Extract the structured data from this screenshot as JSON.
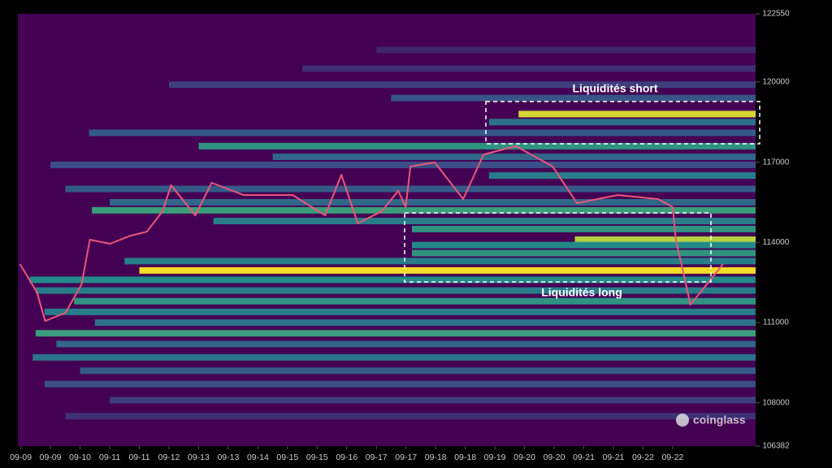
{
  "chart_data": {
    "type": "heatmap",
    "background": "#000000",
    "heat_colors": [
      "#440154",
      "#3b528b",
      "#21918c",
      "#5ec962",
      "#fde725"
    ],
    "xlim": [
      -0.1,
      24.8
    ],
    "xticks": [
      {
        "value": 0,
        "label": "09-09"
      },
      {
        "value": 1,
        "label": "09-09"
      },
      {
        "value": 2,
        "label": "09-10"
      },
      {
        "value": 3,
        "label": "09-11"
      },
      {
        "value": 4,
        "label": "09-11"
      },
      {
        "value": 5,
        "label": "09-12"
      },
      {
        "value": 6,
        "label": "09-13"
      },
      {
        "value": 7,
        "label": "09-13"
      },
      {
        "value": 8,
        "label": "09-14"
      },
      {
        "value": 9,
        "label": "09-15"
      },
      {
        "value": 10,
        "label": "09-15"
      },
      {
        "value": 11,
        "label": "09-16"
      },
      {
        "value": 12,
        "label": "09-17"
      },
      {
        "value": 13,
        "label": "09-17"
      },
      {
        "value": 14,
        "label": "09-18"
      },
      {
        "value": 15,
        "label": "09-18"
      },
      {
        "value": 16,
        "label": "09-19"
      },
      {
        "value": 17,
        "label": "09-20"
      },
      {
        "value": 18,
        "label": "09-20"
      },
      {
        "value": 19,
        "label": "09-21"
      },
      {
        "value": 20,
        "label": "09-21"
      },
      {
        "value": 21,
        "label": "09-22"
      },
      {
        "value": 22,
        "label": "09-22"
      }
    ],
    "ylim": [
      106382,
      122550
    ],
    "yticks": [
      122550,
      120000,
      117000,
      114000,
      111000,
      108000,
      106382
    ],
    "bands": [
      {
        "price": 121200,
        "intensity": 0.12,
        "start": 12.0
      },
      {
        "price": 120500,
        "intensity": 0.15,
        "start": 9.5
      },
      {
        "price": 119900,
        "intensity": 0.2,
        "start": 5.0
      },
      {
        "price": 119400,
        "intensity": 0.28,
        "start": 12.5
      },
      {
        "price": 118800,
        "intensity": 0.95,
        "start": 16.8
      },
      {
        "price": 118500,
        "intensity": 0.4,
        "start": 15.8
      },
      {
        "price": 118100,
        "intensity": 0.3,
        "start": 2.3
      },
      {
        "price": 117600,
        "intensity": 0.55,
        "start": 6.0
      },
      {
        "price": 117200,
        "intensity": 0.35,
        "start": 8.5
      },
      {
        "price": 116900,
        "intensity": 0.25,
        "start": 1.0
      },
      {
        "price": 116500,
        "intensity": 0.45,
        "start": 15.8
      },
      {
        "price": 116000,
        "intensity": 0.3,
        "start": 1.5
      },
      {
        "price": 115500,
        "intensity": 0.35,
        "start": 3.0
      },
      {
        "price": 115200,
        "intensity": 0.6,
        "start": 2.4
      },
      {
        "price": 114800,
        "intensity": 0.45,
        "start": 6.5
      },
      {
        "price": 114500,
        "intensity": 0.55,
        "start": 13.2
      },
      {
        "price": 114100,
        "intensity": 0.9,
        "start": 18.7
      },
      {
        "price": 113900,
        "intensity": 0.5,
        "start": 13.2
      },
      {
        "price": 113600,
        "intensity": 0.55,
        "start": 13.2
      },
      {
        "price": 113300,
        "intensity": 0.45,
        "start": 3.5
      },
      {
        "price": 112950,
        "intensity": 1.0,
        "start": 4.0
      },
      {
        "price": 112600,
        "intensity": 0.5,
        "start": 0.3
      },
      {
        "price": 112200,
        "intensity": 0.45,
        "start": 0.5
      },
      {
        "price": 111800,
        "intensity": 0.55,
        "start": 1.8
      },
      {
        "price": 111400,
        "intensity": 0.45,
        "start": 0.8
      },
      {
        "price": 111000,
        "intensity": 0.4,
        "start": 2.5
      },
      {
        "price": 110600,
        "intensity": 0.6,
        "start": 0.5
      },
      {
        "price": 110200,
        "intensity": 0.35,
        "start": 1.2
      },
      {
        "price": 109700,
        "intensity": 0.4,
        "start": 0.4
      },
      {
        "price": 109200,
        "intensity": 0.3,
        "start": 2.0
      },
      {
        "price": 108700,
        "intensity": 0.25,
        "start": 0.8
      },
      {
        "price": 108100,
        "intensity": 0.2,
        "start": 3.0
      },
      {
        "price": 107500,
        "intensity": 0.15,
        "start": 1.5
      }
    ],
    "price_line": {
      "color": "#e8587a",
      "x": [
        -0.03,
        0.55,
        0.82,
        1.51,
        2.05,
        2.33,
        3.01,
        3.7,
        4.25,
        4.79,
        5.07,
        5.89,
        6.44,
        7.53,
        8.36,
        9.18,
        10.27,
        10.82,
        11.37,
        12.19,
        12.74,
        12.99,
        13.15,
        13.97,
        14.93,
        15.62,
        16.71,
        17.95,
        18.77,
        20.14,
        21.51,
        22.0,
        22.11,
        22.6,
        23.7
      ],
      "values": [
        113190,
        112120,
        111060,
        111370,
        112430,
        114100,
        113950,
        114250,
        114400,
        115170,
        116140,
        115010,
        116230,
        115770,
        115770,
        115770,
        115010,
        116530,
        114710,
        115170,
        115930,
        115320,
        116840,
        116990,
        115620,
        117290,
        117600,
        116840,
        115470,
        115770,
        115620,
        115320,
        114100,
        111670,
        113190
      ]
    },
    "annotations": [
      "Liquidités short",
      "Liquidités long"
    ],
    "watermark": "coinglass"
  }
}
